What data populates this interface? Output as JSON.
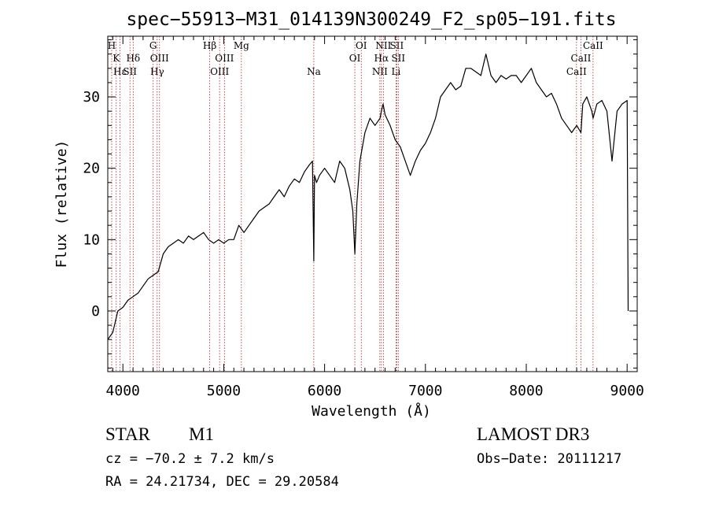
{
  "chart_data": {
    "type": "line",
    "title": "spec−55913−M31_014139N300249_F2_sp05−191.fits",
    "xlabel": "Wavelength (Å)",
    "ylabel": "Flux (relative)",
    "xlim": [
      3850,
      9100
    ],
    "ylim": [
      -8.5,
      38.5
    ],
    "xticks": [
      4000,
      5000,
      6000,
      7000,
      8000,
      9000
    ],
    "yticks": [
      0,
      10,
      20,
      30
    ],
    "grid": false,
    "series": [
      {
        "color": "#000000",
        "x": [
          3850,
          3900,
          3950,
          4000,
          4050,
          4100,
          4150,
          4200,
          4250,
          4300,
          4350,
          4400,
          4450,
          4500,
          4550,
          4600,
          4650,
          4700,
          4750,
          4800,
          4850,
          4900,
          4950,
          5000,
          5050,
          5100,
          5150,
          5200,
          5250,
          5300,
          5350,
          5400,
          5450,
          5500,
          5550,
          5600,
          5650,
          5700,
          5750,
          5800,
          5850,
          5880,
          5893,
          5900,
          5920,
          5950,
          6000,
          6050,
          6100,
          6150,
          6200,
          6250,
          6280,
          6300,
          6320,
          6350,
          6400,
          6450,
          6500,
          6550,
          6563,
          6580,
          6600,
          6650,
          6700,
          6750,
          6800,
          6850,
          6900,
          6950,
          7000,
          7050,
          7100,
          7150,
          7200,
          7250,
          7300,
          7350,
          7400,
          7450,
          7500,
          7550,
          7600,
          7650,
          7700,
          7750,
          7800,
          7850,
          7900,
          7950,
          8000,
          8050,
          8100,
          8150,
          8200,
          8250,
          8300,
          8350,
          8400,
          8450,
          8500,
          8542,
          8560,
          8600,
          8650,
          8662,
          8700,
          8750,
          8800,
          8850,
          8900,
          8950,
          9000,
          9010
        ],
        "y": [
          -4,
          -3,
          0,
          0.5,
          1.5,
          2,
          2.5,
          3.5,
          4.5,
          5,
          5.5,
          8,
          9,
          9.5,
          10,
          9.5,
          10.5,
          10,
          10.5,
          11,
          10,
          9.5,
          10,
          9.5,
          10,
          10,
          12,
          11,
          12,
          13,
          14,
          14.5,
          15,
          16,
          17,
          16,
          17.5,
          18.5,
          18,
          19.5,
          20.5,
          21,
          7,
          19,
          18,
          19,
          20,
          19,
          18,
          21,
          20,
          17,
          14,
          8,
          15,
          21,
          25,
          27,
          26,
          27,
          28,
          29,
          27.5,
          26,
          24,
          23,
          21,
          19,
          21,
          22.5,
          23.5,
          25,
          27,
          30,
          31,
          32,
          31,
          31.5,
          34,
          34,
          33.5,
          33,
          36,
          33,
          32,
          33,
          32.5,
          33,
          33,
          32,
          33,
          34,
          32,
          31,
          30,
          30.5,
          29,
          27,
          26,
          25,
          26,
          25,
          29,
          30,
          28,
          27,
          29,
          29.5,
          28,
          21,
          28,
          29,
          29.5,
          0
        ]
      }
    ],
    "lines": [
      {
        "x": 3889,
        "text": "H",
        "row": 1
      },
      {
        "x": 3934,
        "text": "K",
        "row": 2
      },
      {
        "x": 3970,
        "text": "Hε",
        "row": 3
      },
      {
        "x": 4070,
        "text": "SII",
        "row": 3
      },
      {
        "x": 4102,
        "text": "Hδ",
        "row": 2
      },
      {
        "x": 4300,
        "text": "G",
        "row": 1
      },
      {
        "x": 4340,
        "text": "Hγ",
        "row": 3
      },
      {
        "x": 4363,
        "text": "OIII",
        "row": 2
      },
      {
        "x": 4861,
        "text": "Hβ",
        "row": 1
      },
      {
        "x": 4959,
        "text": "OIII",
        "row": 3
      },
      {
        "x": 5007,
        "text": "OIII",
        "row": 2
      },
      {
        "x": 5175,
        "text": "Mg",
        "row": 1
      },
      {
        "x": 5893,
        "text": "Na",
        "row": 3
      },
      {
        "x": 6300,
        "text": "OI",
        "row": 2
      },
      {
        "x": 6364,
        "text": "OI",
        "row": 1
      },
      {
        "x": 6548,
        "text": "NII",
        "row": 3
      },
      {
        "x": 6563,
        "text": "Hα",
        "row": 2
      },
      {
        "x": 6583,
        "text": "NII",
        "row": 1
      },
      {
        "x": 6708,
        "text": "Li",
        "row": 3
      },
      {
        "x": 6716,
        "text": "SII",
        "row": 1
      },
      {
        "x": 6731,
        "text": "SII",
        "row": 2
      },
      {
        "x": 8498,
        "text": "CaII",
        "row": 3
      },
      {
        "x": 8542,
        "text": "CaII",
        "row": 2
      },
      {
        "x": 8662,
        "text": "CaII",
        "row": 1
      }
    ]
  },
  "info": {
    "object_class": "STAR",
    "subclass": "M1",
    "survey": "LAMOST DR3",
    "cz": "cz = −70.2 ± 7.2 km/s",
    "obs_date": "Obs−Date: 20111217",
    "radec": "RA =  24.21734, DEC =  29.20584"
  }
}
